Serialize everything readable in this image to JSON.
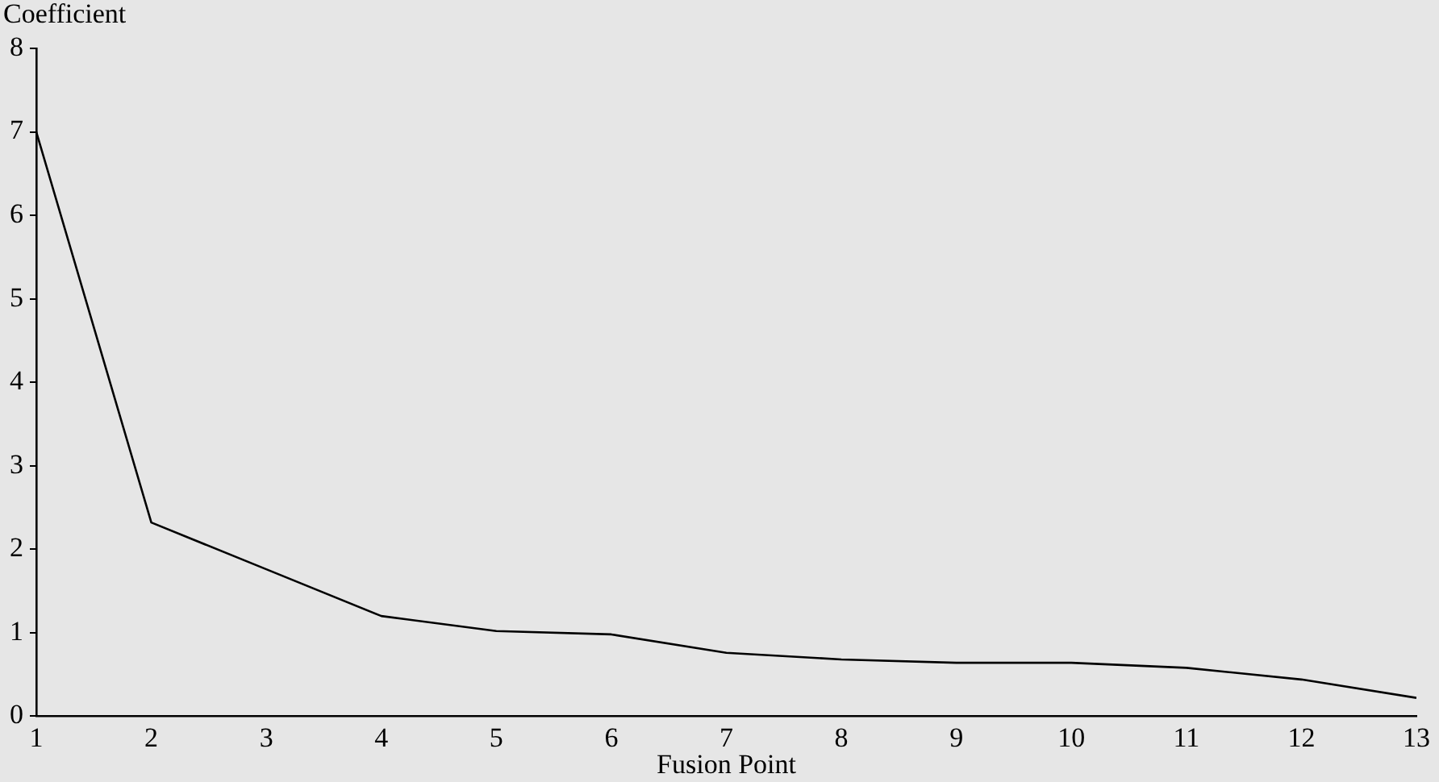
{
  "chart_data": {
    "type": "line",
    "xlabel": "Fusion Point",
    "ylabel": "Coefficient",
    "x": [
      1,
      2,
      3,
      4,
      5,
      6,
      7,
      8,
      9,
      10,
      11,
      12,
      13
    ],
    "series": [
      {
        "color": "#000000",
        "values": [
          7.0,
          2.32,
          1.76,
          1.2,
          1.02,
          0.98,
          0.76,
          0.68,
          0.64,
          0.64,
          0.58,
          0.44,
          0.22
        ]
      }
    ],
    "xlim": [
      1,
      13
    ],
    "xticks": [
      1,
      2,
      3,
      4,
      5,
      6,
      7,
      8,
      9,
      10,
      11,
      12,
      13
    ],
    "ylim": [
      0,
      8
    ],
    "yticks": [
      0,
      1,
      2,
      3,
      4,
      5,
      6,
      7,
      8
    ],
    "grid": false,
    "legend": false,
    "marker": "none",
    "line_style": "solid"
  }
}
